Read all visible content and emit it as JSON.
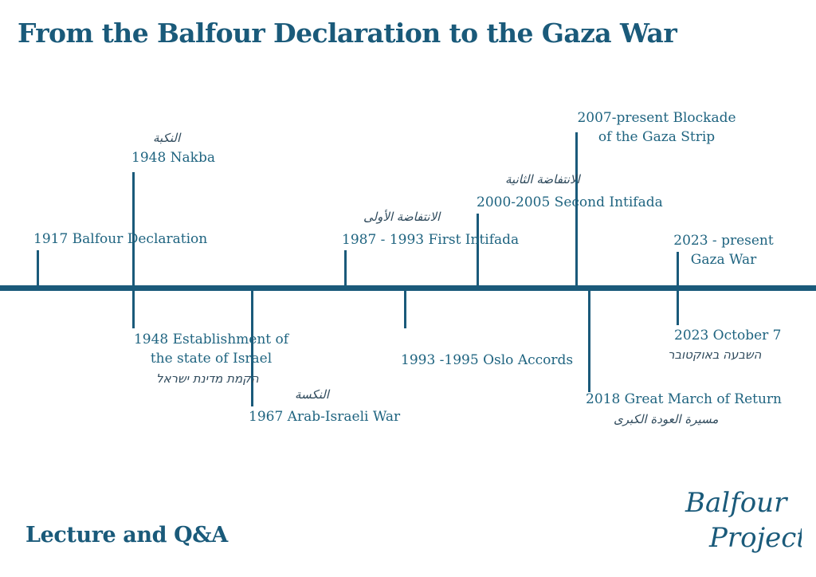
{
  "title": "From the Balfour Declaration to the Gaza War",
  "footer": "Lecture and Q&A",
  "logo": {
    "line1": "Balfour",
    "line2": "Project"
  },
  "events": {
    "balfour": {
      "label": "1917 Balfour Declaration"
    },
    "nakba": {
      "label": "1948 Nakba",
      "arabic": "النكبة"
    },
    "establishment": {
      "line1": "1948 Establishment of",
      "line2": "the state of Israel",
      "hebrew": "הקמת מדינת ישראל"
    },
    "war1967": {
      "label": "1967 Arab-Israeli War",
      "arabic": "النكسة"
    },
    "first_intifada": {
      "label": "1987 - 1993 First Intifada",
      "arabic": "الانتفاضة الأولى"
    },
    "oslo": {
      "label": "1993 -1995 Oslo Accords"
    },
    "second_intifada": {
      "label": "2000-2005 Second Intifada",
      "arabic": "الانتفاضة الثانية"
    },
    "blockade": {
      "line1": "2007-present Blockade",
      "line2": "of the Gaza Strip"
    },
    "march_return": {
      "label": "2018 Great March of Return",
      "arabic": "مسيرة العودة الكبرى"
    },
    "oct7": {
      "label": "2023 October 7",
      "hebrew": "השבעה באוקטובר"
    },
    "gaza_war": {
      "line1": "2023 - present",
      "line2": "Gaza War"
    }
  }
}
